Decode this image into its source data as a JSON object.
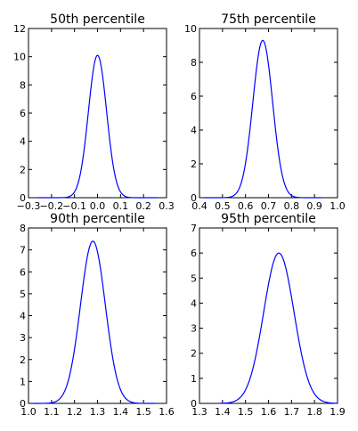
{
  "chart_data": [
    {
      "type": "line",
      "title": "50th percentile",
      "xlim": [
        -0.3,
        0.3
      ],
      "ylim": [
        0,
        12
      ],
      "xticks": [
        -0.3,
        -0.2,
        -0.1,
        0.0,
        0.1,
        0.2,
        0.3
      ],
      "xtick_labels": [
        "−0.3",
        "−0.2",
        "−0.1",
        "0.0",
        "0.1",
        "0.2",
        "0.3"
      ],
      "yticks": [
        0,
        2,
        4,
        6,
        8,
        10,
        12
      ],
      "ytick_labels": [
        "0",
        "2",
        "4",
        "6",
        "8",
        "10",
        "12"
      ],
      "grid": false,
      "series": [
        {
          "color": "#0000ff",
          "curve": "gaussian",
          "peak_x": 0.0,
          "peak_y": 10.1,
          "sigma": 0.0395,
          "x_range": [
            -0.26,
            0.26
          ]
        }
      ]
    },
    {
      "type": "line",
      "title": "75th percentile",
      "xlim": [
        0.4,
        1.0
      ],
      "ylim": [
        0,
        10
      ],
      "xticks": [
        0.4,
        0.5,
        0.6,
        0.7,
        0.8,
        0.9,
        1.0
      ],
      "xtick_labels": [
        "0.4",
        "0.5",
        "0.6",
        "0.7",
        "0.8",
        "0.9",
        "1.0"
      ],
      "yticks": [
        0,
        2,
        4,
        6,
        8,
        10
      ],
      "ytick_labels": [
        "0",
        "2",
        "4",
        "6",
        "8",
        "10"
      ],
      "grid": false,
      "series": [
        {
          "color": "#0000ff",
          "curve": "gaussian",
          "peak_x": 0.675,
          "peak_y": 9.3,
          "sigma": 0.043,
          "x_range": [
            0.42,
            0.93
          ]
        }
      ]
    },
    {
      "type": "line",
      "title": "90th percentile",
      "xlim": [
        1.0,
        1.6
      ],
      "ylim": [
        0,
        8
      ],
      "xticks": [
        1.0,
        1.1,
        1.2,
        1.3,
        1.4,
        1.5,
        1.6
      ],
      "xtick_labels": [
        "1.0",
        "1.1",
        "1.2",
        "1.3",
        "1.4",
        "1.5",
        "1.6"
      ],
      "yticks": [
        0,
        1,
        2,
        3,
        4,
        5,
        6,
        7,
        8
      ],
      "ytick_labels": [
        "0",
        "1",
        "2",
        "3",
        "4",
        "5",
        "6",
        "7",
        "8"
      ],
      "grid": false,
      "series": [
        {
          "color": "#0000ff",
          "curve": "gaussian",
          "peak_x": 1.28,
          "peak_y": 7.4,
          "sigma": 0.054,
          "x_range": [
            1.02,
            1.55
          ]
        }
      ]
    },
    {
      "type": "line",
      "title": "95th percentile",
      "xlim": [
        1.3,
        1.9
      ],
      "ylim": [
        0,
        7
      ],
      "xticks": [
        1.3,
        1.4,
        1.5,
        1.6,
        1.7,
        1.8,
        1.9
      ],
      "xtick_labels": [
        "1.3",
        "1.4",
        "1.5",
        "1.6",
        "1.7",
        "1.8",
        "1.9"
      ],
      "yticks": [
        0,
        1,
        2,
        3,
        4,
        5,
        6,
        7
      ],
      "ytick_labels": [
        "0",
        "1",
        "2",
        "3",
        "4",
        "5",
        "6",
        "7"
      ],
      "grid": false,
      "series": [
        {
          "color": "#0000ff",
          "curve": "gaussian",
          "peak_x": 1.645,
          "peak_y": 6.0,
          "sigma": 0.066,
          "x_range": [
            1.38,
            1.9
          ]
        }
      ]
    }
  ]
}
